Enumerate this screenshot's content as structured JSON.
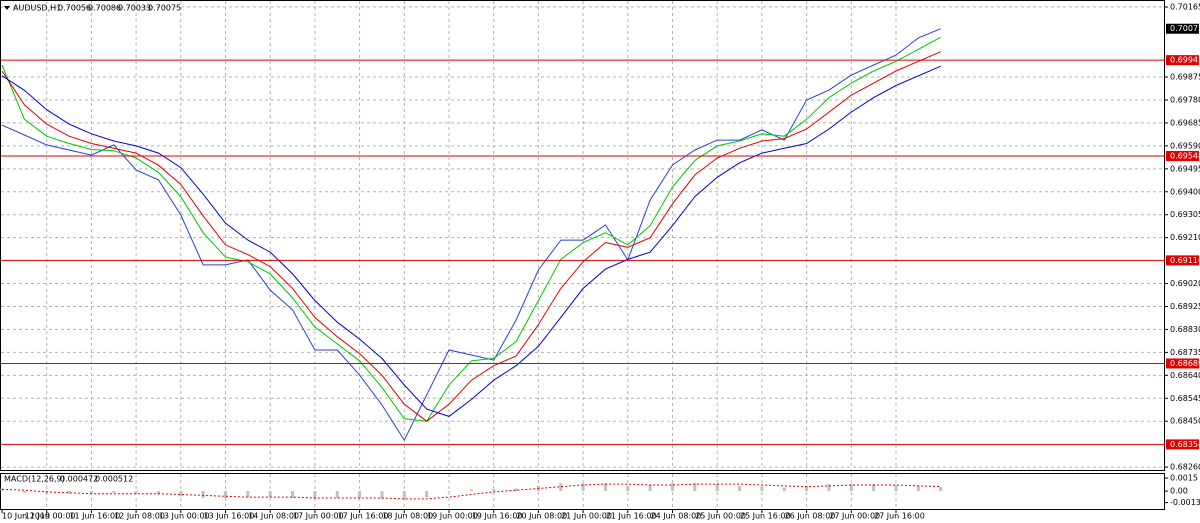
{
  "chart_data": [
    {
      "type": "line",
      "title": "AUDUSD,H1",
      "ohlc": [
        0.70056,
        0.70086,
        0.70033,
        0.70075
      ],
      "categories": [
        "10 Jun 2019",
        null,
        "11 Jun 00:00",
        null,
        "11 Jun 16:00",
        null,
        "12 Jun 08:00",
        null,
        "13 Jun 00:00",
        null,
        "13 Jun 16:00",
        null,
        "14 Jun 08:00",
        null,
        "17 Jun 00:00",
        null,
        "17 Jun 16:00",
        null,
        "18 Jun 08:00",
        null,
        "19 Jun 00:00",
        null,
        "19 Jun 16:00",
        null,
        "20 Jun 08:00",
        null,
        "21 Jun 00:00",
        null,
        "21 Jun 16:00",
        null,
        "24 Jun 08:00",
        null,
        "25 Jun 00:00",
        null,
        "25 Jun 16:00",
        null,
        "26 Jun 08:00",
        null,
        "27 Jun 00:00",
        null,
        "27 Jun 16:00",
        null,
        null
      ],
      "series": [
        {
          "color": "#2a3fd6",
          "values": [
            0.69676,
            0.69635,
            0.69594,
            0.69573,
            0.69552,
            0.69594,
            0.6949,
            0.69449,
            0.69304,
            0.69097,
            0.69097,
            0.69118,
            0.68993,
            0.68911,
            0.68745,
            0.68745,
            0.68641,
            0.68517,
            0.68372,
            0.68559,
            0.68745,
            0.68724,
            0.68703,
            0.68869,
            0.69076,
            0.692,
            0.692,
            0.69263,
            0.69118,
            0.69366,
            0.69511,
            0.69573,
            0.69614,
            0.69614,
            0.69656,
            0.69614,
            0.6978,
            0.69821,
            0.69883,
            0.69925,
            0.69966,
            0.70037,
            0.70075
          ]
        },
        {
          "color": "#00c800",
          "values": [
            0.69925,
            0.697,
            0.6963,
            0.696,
            0.69575,
            0.6957,
            0.6954,
            0.6948,
            0.6938,
            0.6923,
            0.6913,
            0.6911,
            0.6906,
            0.6896,
            0.6884,
            0.6877,
            0.687,
            0.6859,
            0.6846,
            0.6845,
            0.686,
            0.687,
            0.6871,
            0.6878,
            0.6895,
            0.6912,
            0.6919,
            0.6923,
            0.6918,
            0.6926,
            0.6942,
            0.6953,
            0.6959,
            0.6961,
            0.6964,
            0.6963,
            0.697,
            0.6979,
            0.6985,
            0.699,
            0.6994,
            0.6999,
            0.7004
          ]
        },
        {
          "color": "#e00000",
          "values": [
            0.699,
            0.6976,
            0.6968,
            0.6963,
            0.696,
            0.6958,
            0.6956,
            0.6951,
            0.6943,
            0.693,
            0.6918,
            0.6914,
            0.6909,
            0.69,
            0.6888,
            0.688,
            0.6873,
            0.6864,
            0.6852,
            0.6845,
            0.6852,
            0.6862,
            0.6868,
            0.6872,
            0.6885,
            0.69,
            0.6911,
            0.6919,
            0.6917,
            0.6921,
            0.6935,
            0.6947,
            0.6954,
            0.6958,
            0.6961,
            0.6962,
            0.6966,
            0.6973,
            0.698,
            0.6985,
            0.699,
            0.6994,
            0.6998
          ]
        },
        {
          "color": "#0000d0",
          "values": [
            0.6988,
            0.6982,
            0.6974,
            0.6968,
            0.6964,
            0.6961,
            0.6959,
            0.6956,
            0.695,
            0.6939,
            0.6927,
            0.692,
            0.6915,
            0.6906,
            0.6895,
            0.6886,
            0.6879,
            0.6871,
            0.686,
            0.685,
            0.6847,
            0.6854,
            0.6862,
            0.6868,
            0.6876,
            0.6888,
            0.69,
            0.6908,
            0.6912,
            0.6915,
            0.6926,
            0.6938,
            0.6946,
            0.6952,
            0.6956,
            0.6958,
            0.696,
            0.6966,
            0.6973,
            0.6979,
            0.6984,
            0.6988,
            0.6992
          ]
        }
      ],
      "levels": [
        0.69945,
        0.69548,
        0.69116,
        0.68689,
        0.68354
      ],
      "level_color": "#e00000",
      "last_price": 0.70075,
      "ylim": [
        0.68248,
        0.70194
      ],
      "yticks": [
        0.70165,
        0.69875,
        {
          "value": 0.6978,
          "label": "0.69780"
        },
        0.69685,
        {
          "value": 0.6959,
          "label": "0.69590"
        },
        0.69495,
        {
          "value": 0.694,
          "label": "0.69400"
        },
        0.69305,
        {
          "value": 0.6921,
          "label": "0.69210"
        },
        {
          "value": 0.6902,
          "label": "0.69020"
        },
        0.68925,
        {
          "value": 0.6883,
          "label": "0.68830"
        },
        0.68735,
        {
          "value": 0.6864,
          "label": "0.68640"
        },
        0.68545,
        {
          "value": 0.6845,
          "label": "0.68450"
        },
        {
          "value": 0.6826,
          "label": "0.68260"
        }
      ],
      "grid": true
    },
    {
      "type": "macd",
      "title": "MACD(12,26,9)",
      "indicator_values": [
        0.000472,
        0.000512
      ],
      "series": [
        {
          "color": "#c0c0c0",
          "values": [
            0.0003,
            -0.0002,
            -0.0003,
            -0.0003,
            -0.0003,
            -0.0002,
            -0.0003,
            -0.0004,
            -0.0006,
            -0.0008,
            -0.0008,
            -0.0007,
            -0.0007,
            -0.0008,
            -0.0009,
            -0.0008,
            -0.0008,
            -0.0009,
            -0.001,
            -0.0007,
            -0.0001,
            0.0002,
            0.0002,
            0.0003,
            0.0006,
            0.0009,
            0.0009,
            0.0009,
            0.0006,
            0.0007,
            0.0009,
            0.0009,
            0.0008,
            0.0006,
            0.0005,
            0.0004,
            0.0006,
            0.0008,
            0.0008,
            0.0008,
            0.0007,
            0.0006,
            0.000472
          ]
        },
        {
          "color": "#e00000",
          "values": [
            0.0002,
            0.0001,
            -0.0001,
            -0.0002,
            -0.0003,
            -0.0003,
            -0.0003,
            -0.0003,
            -0.0004,
            -0.0005,
            -0.0006,
            -0.0007,
            -0.0007,
            -0.0007,
            -0.0008,
            -0.0008,
            -0.0008,
            -0.0008,
            -0.0009,
            -0.0009,
            -0.0007,
            -0.0004,
            -0.0001,
            0.0001,
            0.0003,
            0.0005,
            0.0007,
            0.0008,
            0.0008,
            0.0007,
            0.0007,
            0.0008,
            0.0008,
            0.0008,
            0.0007,
            0.0006,
            0.0005,
            0.0006,
            0.0007,
            0.0007,
            0.0007,
            0.0006,
            0.000512
          ]
        }
      ],
      "ylim": [
        -0.00218,
        0.00208
      ],
      "yticks": [
        0.0015,
        {
          "value": 0,
          "label": "0.00"
        },
        -0.001331
      ]
    }
  ]
}
